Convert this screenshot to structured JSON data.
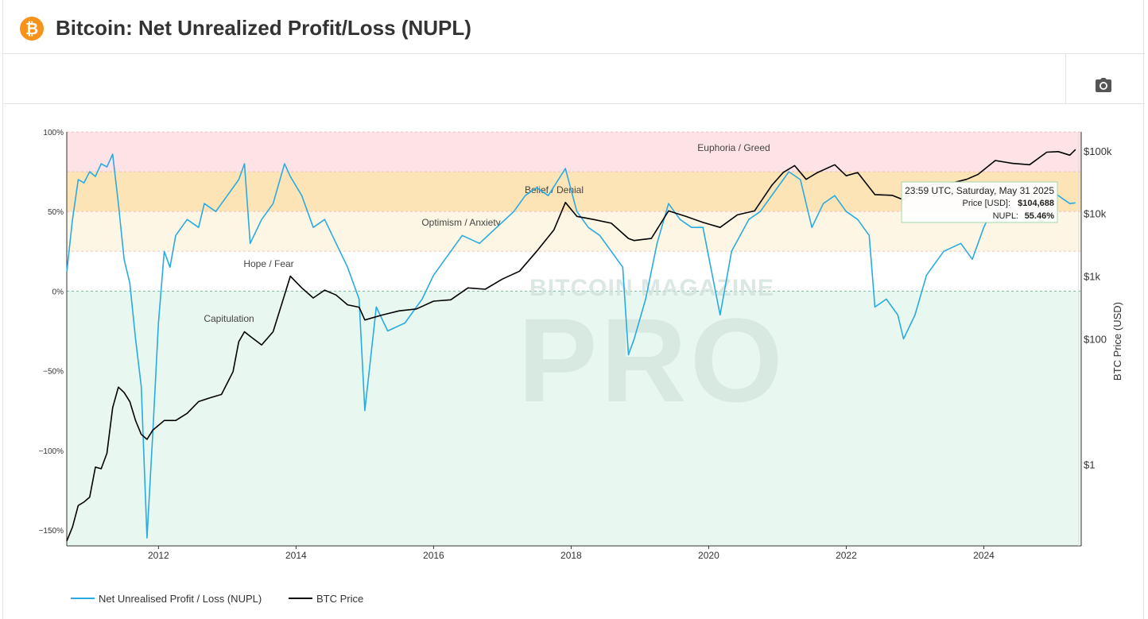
{
  "header": {
    "logo_glyph": "₿",
    "title": "Bitcoin: Net Unrealized Profit/Loss (NUPL)"
  },
  "toolbar": {
    "camera_icon": "camera-icon"
  },
  "colors": {
    "nupl": "#29abe2",
    "price": "#000000",
    "euphoria": "#fde3e5",
    "belief": "#fde4b7",
    "optimism": "#fef6e4",
    "capitulation": "#e8f8f0",
    "zero_line": "#7ab79b",
    "watermark": "#cfe0d9"
  },
  "watermark": {
    "line1": "BITCOIN MAGAZINE",
    "line2": "PRO"
  },
  "chart_data": {
    "type": "line",
    "x_ticks": [
      "2012",
      "2014",
      "2016",
      "2018",
      "2020",
      "2022",
      "2024"
    ],
    "y_left_ticks": [
      "100%",
      "50%",
      "0%",
      "−50%",
      "−100%",
      "−150%"
    ],
    "y_left_range": [
      -160,
      100
    ],
    "y_right_ticks": [
      "$100k",
      "$10k",
      "$1k",
      "$100",
      "$1"
    ],
    "y_right_label": "BTC Price (USD)",
    "y_right_scale": "log",
    "y_right_range": [
      0.05,
      200000
    ],
    "x_range": [
      "2010-09",
      "2025-06"
    ],
    "zones": [
      {
        "label": "Euphoria / Greed",
        "from": 75,
        "to": 100
      },
      {
        "label": "Belief / Denial",
        "from": 50,
        "to": 75
      },
      {
        "label": "Optimism / Anxiety",
        "from": 25,
        "to": 50
      },
      {
        "label": "Hope / Fear",
        "from": 0,
        "to": 25
      },
      {
        "label": "Capitulation",
        "from": -160,
        "to": 0
      }
    ],
    "series": [
      {
        "name": "Net Unrealised Profit / Loss (NUPL)",
        "axis": "left",
        "x": [
          "2010-09",
          "2010-10",
          "2010-11",
          "2010-12",
          "2011-01",
          "2011-02",
          "2011-03",
          "2011-04",
          "2011-05",
          "2011-06",
          "2011-07",
          "2011-08",
          "2011-09",
          "2011-10",
          "2011-11",
          "2011-12",
          "2012-01",
          "2012-02",
          "2012-03",
          "2012-04",
          "2012-06",
          "2012-08",
          "2012-09",
          "2012-11",
          "2013-01",
          "2013-03",
          "2013-04",
          "2013-05",
          "2013-07",
          "2013-09",
          "2013-11",
          "2013-12",
          "2014-02",
          "2014-04",
          "2014-06",
          "2014-08",
          "2014-10",
          "2014-12",
          "2015-01",
          "2015-03",
          "2015-05",
          "2015-08",
          "2015-11",
          "2016-01",
          "2016-03",
          "2016-06",
          "2016-09",
          "2016-12",
          "2017-03",
          "2017-05",
          "2017-07",
          "2017-09",
          "2017-12",
          "2018-02",
          "2018-04",
          "2018-06",
          "2018-08",
          "2018-10",
          "2018-11",
          "2018-12",
          "2019-02",
          "2019-04",
          "2019-06",
          "2019-08",
          "2019-10",
          "2019-12",
          "2020-03",
          "2020-05",
          "2020-08",
          "2020-10",
          "2021-01",
          "2021-03",
          "2021-05",
          "2021-07",
          "2021-09",
          "2021-11",
          "2022-01",
          "2022-03",
          "2022-05",
          "2022-06",
          "2022-08",
          "2022-10",
          "2022-11",
          "2023-01",
          "2023-03",
          "2023-06",
          "2023-09",
          "2023-11",
          "2024-01",
          "2024-03",
          "2024-05",
          "2024-08",
          "2024-10",
          "2024-12",
          "2025-02",
          "2025-04",
          "2025-05"
        ],
        "values": [
          12,
          45,
          70,
          68,
          75,
          72,
          80,
          78,
          86,
          55,
          20,
          5,
          -30,
          -60,
          -155,
          -90,
          -20,
          25,
          15,
          35,
          45,
          40,
          55,
          50,
          60,
          70,
          80,
          30,
          45,
          55,
          80,
          72,
          60,
          40,
          45,
          30,
          15,
          -5,
          -75,
          -10,
          -25,
          -20,
          -5,
          10,
          20,
          35,
          30,
          40,
          50,
          60,
          65,
          60,
          77,
          50,
          40,
          35,
          25,
          15,
          -40,
          -30,
          -5,
          30,
          55,
          45,
          40,
          40,
          -15,
          25,
          45,
          50,
          65,
          75,
          70,
          40,
          55,
          60,
          50,
          45,
          35,
          -10,
          -5,
          -15,
          -30,
          -15,
          10,
          25,
          30,
          20,
          40,
          55,
          55,
          45,
          50,
          65,
          60,
          55,
          55.46
        ]
      },
      {
        "name": "BTC Price",
        "axis": "right",
        "x": [
          "2010-09",
          "2010-10",
          "2010-11",
          "2010-12",
          "2011-01",
          "2011-02",
          "2011-03",
          "2011-04",
          "2011-05",
          "2011-06",
          "2011-07",
          "2011-08",
          "2011-09",
          "2011-10",
          "2011-11",
          "2011-12",
          "2012-02",
          "2012-04",
          "2012-06",
          "2012-08",
          "2012-10",
          "2012-12",
          "2013-02",
          "2013-03",
          "2013-04",
          "2013-05",
          "2013-07",
          "2013-09",
          "2013-11",
          "2013-12",
          "2014-02",
          "2014-04",
          "2014-06",
          "2014-08",
          "2014-10",
          "2014-12",
          "2015-01",
          "2015-04",
          "2015-07",
          "2015-10",
          "2016-01",
          "2016-04",
          "2016-07",
          "2016-10",
          "2017-01",
          "2017-04",
          "2017-07",
          "2017-10",
          "2017-12",
          "2018-02",
          "2018-05",
          "2018-08",
          "2018-11",
          "2018-12",
          "2019-03",
          "2019-06",
          "2019-09",
          "2019-12",
          "2020-03",
          "2020-06",
          "2020-09",
          "2020-12",
          "2021-02",
          "2021-04",
          "2021-06",
          "2021-08",
          "2021-11",
          "2022-01",
          "2022-03",
          "2022-06",
          "2022-09",
          "2022-11",
          "2023-01",
          "2023-04",
          "2023-07",
          "2023-10",
          "2023-12",
          "2024-03",
          "2024-06",
          "2024-09",
          "2024-12",
          "2025-02",
          "2025-04",
          "2025-05"
        ],
        "values": [
          0.06,
          0.1,
          0.22,
          0.25,
          0.3,
          0.9,
          0.85,
          1.5,
          8,
          17,
          14,
          10,
          5,
          3,
          2.5,
          3.5,
          5,
          5,
          6.5,
          10,
          11.5,
          13,
          30,
          90,
          130,
          110,
          80,
          130,
          500,
          1000,
          650,
          450,
          600,
          500,
          350,
          320,
          200,
          240,
          280,
          300,
          400,
          420,
          650,
          620,
          900,
          1200,
          2500,
          5500,
          15000,
          9000,
          8000,
          7000,
          4000,
          3700,
          4000,
          11000,
          9000,
          7200,
          6000,
          9500,
          11000,
          28000,
          45000,
          58000,
          35000,
          45000,
          60000,
          40000,
          45000,
          20000,
          19500,
          16500,
          23000,
          29000,
          30000,
          35000,
          42000,
          70000,
          63000,
          60000,
          95000,
          97000,
          85000,
          104688
        ]
      }
    ],
    "tooltip": {
      "title": "23:59 UTC, Saturday, May 31 2025",
      "price_label": "Price [USD]:",
      "price_value": "$104,688",
      "nupl_label": "NUPL:",
      "nupl_value": "55.46%"
    },
    "legend": [
      "Net Unrealised Profit / Loss (NUPL)",
      "BTC Price"
    ],
    "legend_position": "bottom-left",
    "grid": false
  }
}
